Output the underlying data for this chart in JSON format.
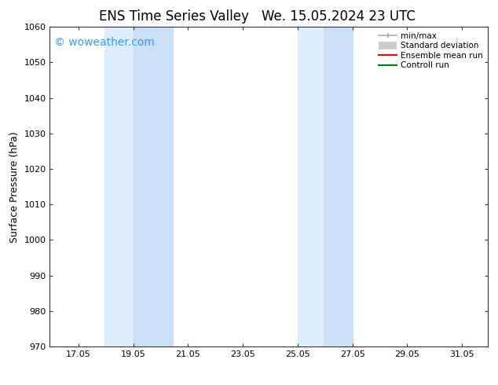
{
  "title_left": "ENS Time Series Valley",
  "title_right": "We. 15.05.2024 23 UTC",
  "ylabel": "Surface Pressure (hPa)",
  "ylim": [
    970,
    1060
  ],
  "yticks": [
    970,
    980,
    990,
    1000,
    1010,
    1020,
    1030,
    1040,
    1050,
    1060
  ],
  "xlim": [
    16.0,
    32.0
  ],
  "xtick_positions": [
    17.05,
    19.05,
    21.05,
    23.05,
    25.05,
    27.05,
    29.05,
    31.05
  ],
  "xtick_labels": [
    "17.05",
    "19.05",
    "21.05",
    "23.05",
    "25.05",
    "27.05",
    "29.05",
    "31.05"
  ],
  "shaded_bands": [
    {
      "x_start": 18.0,
      "x_end": 19.05,
      "color": "#ddeeff"
    },
    {
      "x_start": 19.05,
      "x_end": 20.5,
      "color": "#cce0f5"
    },
    {
      "x_start": 25.05,
      "x_end": 26.0,
      "color": "#ddeeff"
    },
    {
      "x_start": 26.0,
      "x_end": 27.05,
      "color": "#cce0f5"
    }
  ],
  "watermark": "© woweather.com",
  "watermark_color": "#3399ff",
  "watermark_fontsize": 10,
  "legend_items": [
    {
      "label": "min/max",
      "color": "#aaaaaa",
      "lw": 1.2
    },
    {
      "label": "Standard deviation",
      "color": "#cccccc",
      "lw": 7
    },
    {
      "label": "Ensemble mean run",
      "color": "red",
      "lw": 1.5
    },
    {
      "label": "Controll run",
      "color": "green",
      "lw": 1.5
    }
  ],
  "bg_color": "#ffffff",
  "spine_color": "#333333",
  "title_fontsize": 12,
  "ylabel_fontsize": 9,
  "tick_fontsize": 8,
  "legend_fontsize": 7.5
}
